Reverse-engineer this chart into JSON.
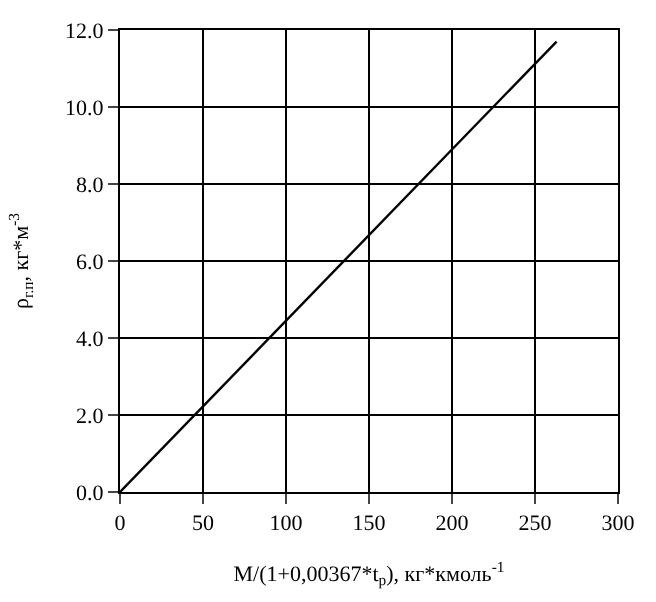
{
  "chart_data": {
    "type": "line",
    "x": [
      0,
      263
    ],
    "series": [
      {
        "color": "#000000",
        "values": [
          0,
          11.7
        ]
      }
    ],
    "xlabel": "M/(1+0,00367*t$_{р}$), кг*кмоль$^{-1}$",
    "ylabel": "ρ$_{г.п}$, кг*м$^{-3}$",
    "xlim": [
      0,
      300
    ],
    "xticks": [
      0,
      50,
      100,
      150,
      200,
      250,
      300
    ],
    "ylim": [
      0,
      12
    ],
    "yticks": [
      {
        "value": 0,
        "label": "0.0"
      },
      {
        "value": 2,
        "label": "2.0"
      },
      {
        "value": 4,
        "label": "4.0"
      },
      {
        "value": 6,
        "label": "6.0"
      },
      {
        "value": 8,
        "label": "8.0"
      },
      {
        "value": 10,
        "label": "10.0"
      },
      {
        "value": 12,
        "label": "12.0"
      }
    ],
    "grid": true,
    "marker": "none",
    "line_style": "solid"
  }
}
